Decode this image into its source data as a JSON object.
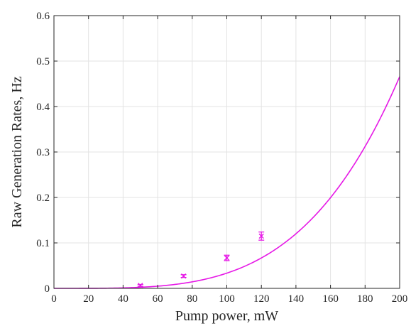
{
  "chart_data": {
    "type": "scatter",
    "xlabel": "Pump power, mW",
    "ylabel": "Raw Generation Rates, Hz",
    "xlim": [
      0,
      200
    ],
    "ylim": [
      0,
      0.6
    ],
    "xticks": [
      0,
      20,
      40,
      60,
      80,
      100,
      120,
      140,
      160,
      180,
      200
    ],
    "yticks": [
      0,
      0.1,
      0.2,
      0.3,
      0.4,
      0.5,
      0.6
    ],
    "xtick_labels": [
      "0",
      "20",
      "40",
      "60",
      "80",
      "100",
      "120",
      "140",
      "160",
      "180",
      "200"
    ],
    "ytick_labels": [
      "0",
      "0.1",
      "0.2",
      "0.3",
      "0.4",
      "0.5",
      "0.6"
    ],
    "grid": true,
    "color": "#e619e6",
    "series": [
      {
        "kind": "points_with_error",
        "x": [
          50,
          75,
          100,
          120
        ],
        "y": [
          0.0065,
          0.027,
          0.067,
          0.115
        ],
        "err": [
          0.002,
          0.003,
          0.006,
          0.009
        ]
      },
      {
        "kind": "fit_line",
        "model": "power_law",
        "coefficient": 8.4e-10,
        "exponent": 3.8,
        "x_range": [
          0,
          200
        ]
      }
    ]
  }
}
